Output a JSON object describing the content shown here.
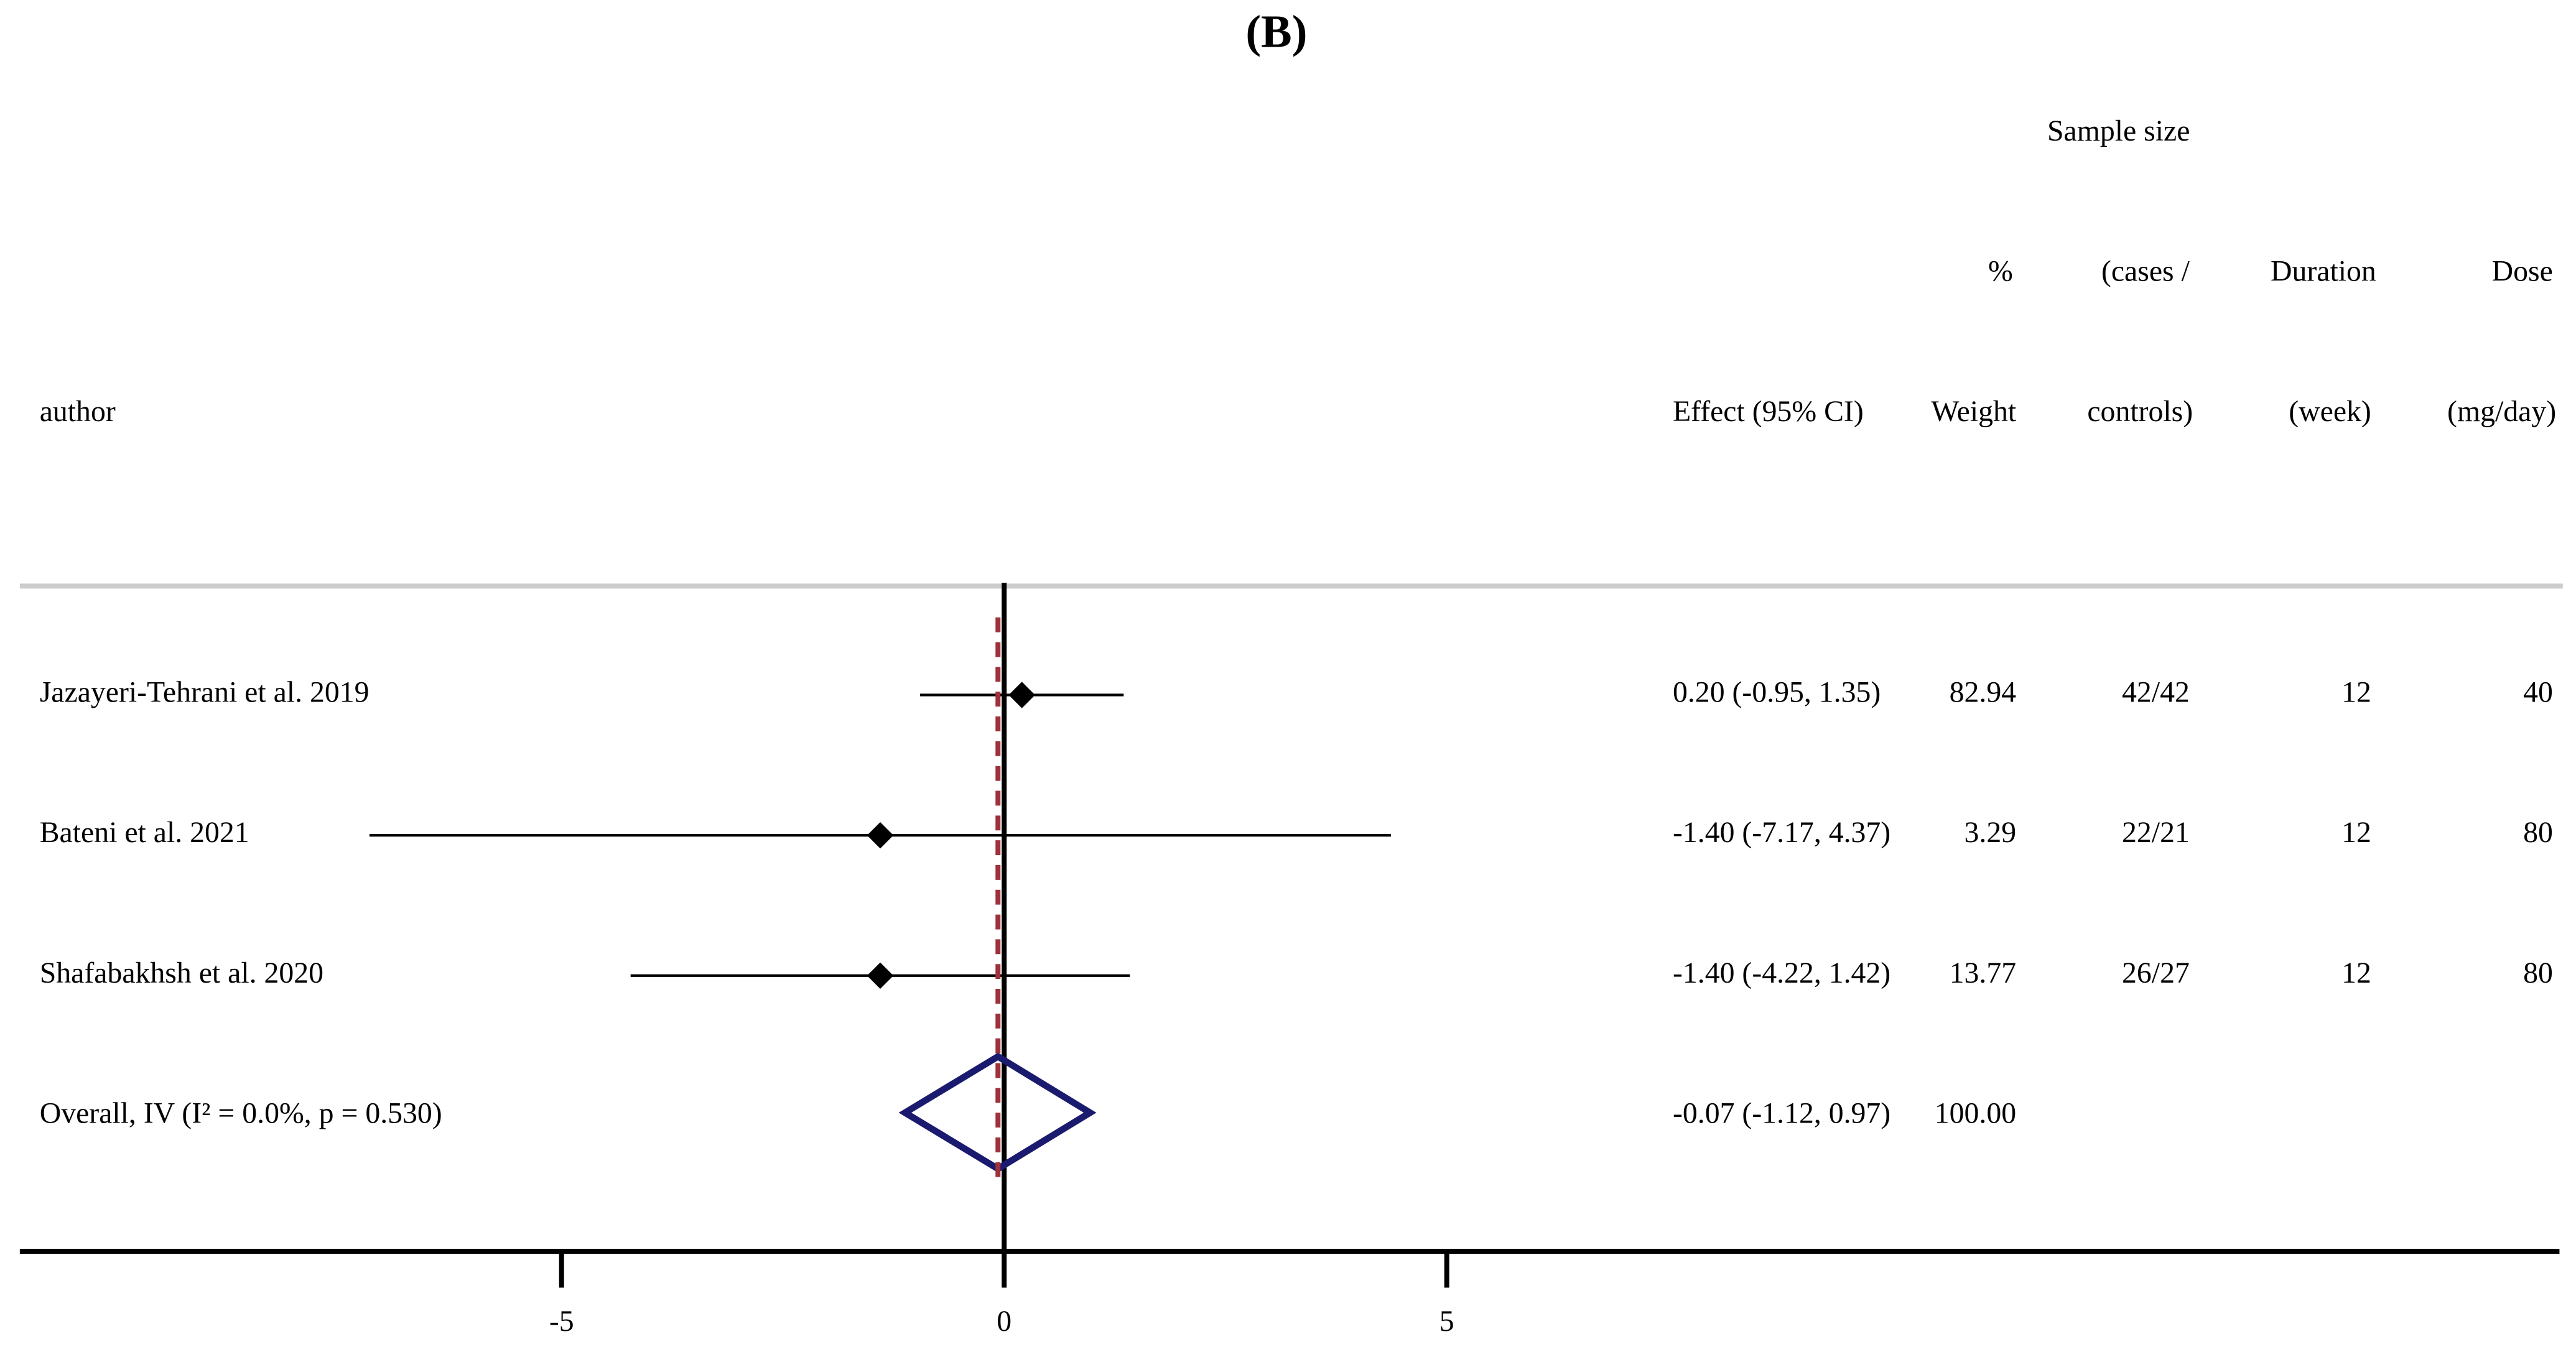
{
  "chart_data": {
    "type": "forest",
    "title": "(B)",
    "header": {
      "author": "author",
      "effect": "Effect (95% CI)",
      "weight": [
        "%",
        "Weight"
      ],
      "sample": [
        "Sample size",
        "(cases /",
        "controls)"
      ],
      "duration": [
        "Duration",
        "(week)"
      ],
      "dose": [
        "Dose",
        "(mg/day)"
      ]
    },
    "studies": [
      {
        "name": "Jazayeri-Tehrani et al. 2019",
        "estimate": 0.2,
        "ci": [
          -0.95,
          1.35
        ],
        "effect_label": "0.20 (-0.95, 1.35)",
        "weight": 82.94,
        "sample": "42/42",
        "duration": 12,
        "dose": 40
      },
      {
        "name": "Bateni et al. 2021",
        "estimate": -1.4,
        "ci": [
          -7.17,
          4.37
        ],
        "effect_label": "-1.40 (-7.17, 4.37)",
        "weight": 3.29,
        "sample": "22/21",
        "duration": 12,
        "dose": 80
      },
      {
        "name": "Shafabakhsh et al. 2020",
        "estimate": -1.4,
        "ci": [
          -4.22,
          1.42
        ],
        "effect_label": "-1.40 (-4.22, 1.42)",
        "weight": 13.77,
        "sample": "26/27",
        "duration": 12,
        "dose": 80
      }
    ],
    "overall": {
      "name": "Overall, IV (I² = 0.0%, p = 0.530)",
      "estimate": -0.07,
      "ci": [
        -1.12,
        0.97
      ],
      "effect_label": "-0.07 (-1.12, 0.97)",
      "weight": 100,
      "weight_label": "100.00"
    },
    "xlim": [
      -11.12,
      17.57
    ],
    "xticks": [
      -5,
      0,
      5
    ],
    "null_line": 0,
    "marker_color": "#000000",
    "overall_color": "#1a1a6e",
    "overall_line_color": "#a0303a"
  }
}
